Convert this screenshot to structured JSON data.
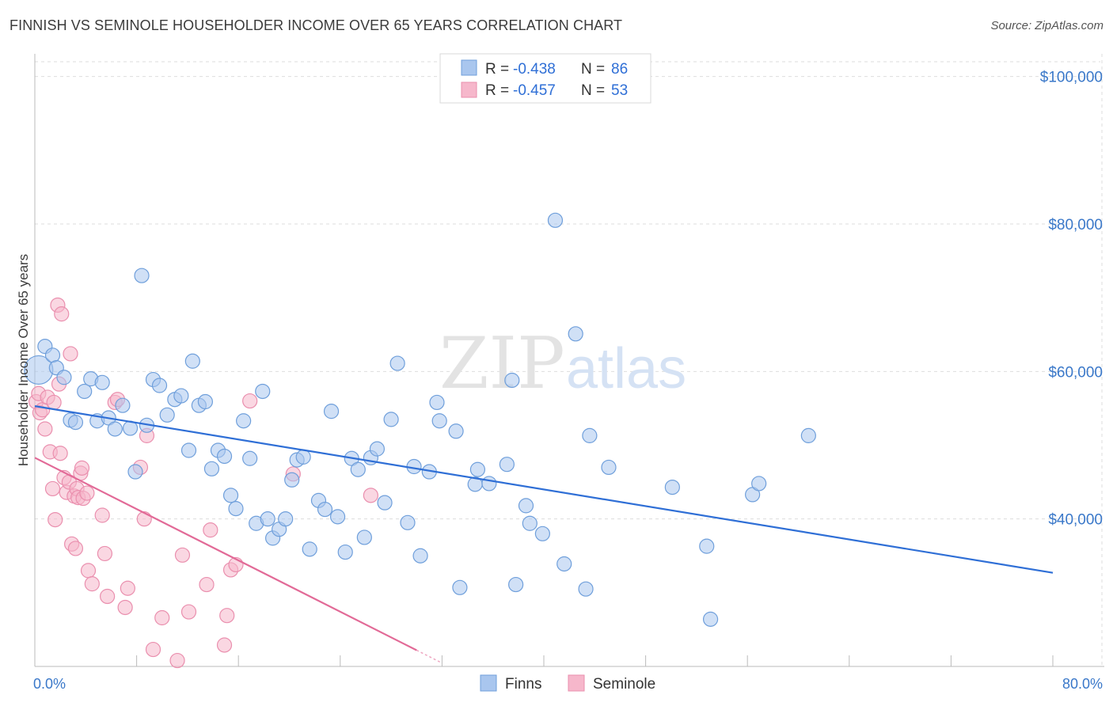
{
  "title": "FINNISH VS SEMINOLE HOUSEHOLDER INCOME OVER 65 YEARS CORRELATION CHART",
  "source": "Source: ZipAtlas.com",
  "watermark": {
    "part1": "ZIP",
    "part2": "atlas"
  },
  "legend": {
    "finns": {
      "r_label": "R =",
      "r_value": "-0.438",
      "n_label": "N =",
      "n_value": "86"
    },
    "seminole": {
      "r_label": "R =",
      "r_value": "-0.457",
      "n_label": "N =",
      "n_value": "53"
    }
  },
  "colors": {
    "finns_fill": "#a9c6ee",
    "finns_stroke": "#6f9fdb",
    "finns_line": "#2f6fd6",
    "seminole_fill": "#f6b7cb",
    "seminole_stroke": "#ea8fae",
    "seminole_line": "#e26a97",
    "grid": "#dddddd",
    "tick_text": "#3a78c9"
  },
  "chart_data": {
    "type": "scatter",
    "title": "FINNISH VS SEMINOLE HOUSEHOLDER INCOME OVER 65 YEARS CORRELATION CHART",
    "xlabel": "",
    "ylabel": "Householder Income Over 65 years",
    "xlim": [
      0,
      80
    ],
    "ylim": [
      20000,
      102000
    ],
    "x_tick_labels": [
      "0.0%",
      "80.0%"
    ],
    "y_ticks": [
      {
        "value": 100000,
        "label": "$100,000"
      },
      {
        "value": 80000,
        "label": "$80,000"
      },
      {
        "value": 60000,
        "label": "$60,000"
      },
      {
        "value": 40000,
        "label": "$40,000"
      }
    ],
    "grid": true,
    "legend_position": "top-center",
    "series": [
      {
        "name": "Finns",
        "points": [
          [
            0.3,
            60200
          ],
          [
            0.8,
            63400
          ],
          [
            1.4,
            62200
          ],
          [
            1.7,
            60500
          ],
          [
            2.3,
            59200
          ],
          [
            2.8,
            53400
          ],
          [
            3.2,
            53100
          ],
          [
            3.9,
            57300
          ],
          [
            4.4,
            59000
          ],
          [
            4.9,
            53300
          ],
          [
            5.3,
            58500
          ],
          [
            5.8,
            53700
          ],
          [
            6.3,
            52200
          ],
          [
            6.9,
            55400
          ],
          [
            7.5,
            52300
          ],
          [
            7.9,
            46400
          ],
          [
            8.4,
            73000
          ],
          [
            8.8,
            52700
          ],
          [
            9.3,
            58900
          ],
          [
            9.8,
            58100
          ],
          [
            10.4,
            54100
          ],
          [
            11.0,
            56200
          ],
          [
            11.5,
            56700
          ],
          [
            12.1,
            49300
          ],
          [
            12.4,
            61400
          ],
          [
            12.9,
            55400
          ],
          [
            13.4,
            55900
          ],
          [
            13.9,
            46800
          ],
          [
            14.4,
            49300
          ],
          [
            14.9,
            48500
          ],
          [
            15.4,
            43200
          ],
          [
            15.8,
            41400
          ],
          [
            16.4,
            53300
          ],
          [
            16.9,
            48200
          ],
          [
            17.4,
            39400
          ],
          [
            17.9,
            57300
          ],
          [
            18.3,
            40000
          ],
          [
            18.7,
            37400
          ],
          [
            19.2,
            38600
          ],
          [
            19.7,
            40000
          ],
          [
            20.2,
            45300
          ],
          [
            20.6,
            48000
          ],
          [
            21.1,
            48400
          ],
          [
            21.6,
            35900
          ],
          [
            22.3,
            42500
          ],
          [
            22.8,
            41300
          ],
          [
            23.3,
            54600
          ],
          [
            23.8,
            40300
          ],
          [
            24.4,
            35500
          ],
          [
            24.9,
            48200
          ],
          [
            25.4,
            46700
          ],
          [
            25.9,
            37500
          ],
          [
            26.4,
            48300
          ],
          [
            26.9,
            49500
          ],
          [
            27.5,
            42200
          ],
          [
            28.0,
            53500
          ],
          [
            28.5,
            61100
          ],
          [
            29.3,
            39500
          ],
          [
            29.8,
            47100
          ],
          [
            30.3,
            35000
          ],
          [
            31.0,
            46400
          ],
          [
            31.6,
            55800
          ],
          [
            31.8,
            53300
          ],
          [
            33.1,
            51900
          ],
          [
            33.4,
            30700
          ],
          [
            34.6,
            44700
          ],
          [
            34.8,
            46700
          ],
          [
            35.7,
            44800
          ],
          [
            37.1,
            47400
          ],
          [
            37.5,
            58800
          ],
          [
            37.8,
            31100
          ],
          [
            38.6,
            41800
          ],
          [
            38.9,
            39400
          ],
          [
            39.9,
            38000
          ],
          [
            40.9,
            80500
          ],
          [
            41.6,
            33900
          ],
          [
            42.5,
            65100
          ],
          [
            43.3,
            30500
          ],
          [
            43.6,
            51300
          ],
          [
            45.1,
            47000
          ],
          [
            50.1,
            44300
          ],
          [
            52.8,
            36300
          ],
          [
            53.1,
            26400
          ],
          [
            56.4,
            43300
          ],
          [
            56.9,
            44800
          ],
          [
            60.8,
            51300
          ]
        ]
      },
      {
        "name": "Seminole",
        "points": [
          [
            0.1,
            55900
          ],
          [
            0.3,
            57000
          ],
          [
            0.4,
            54400
          ],
          [
            0.6,
            54800
          ],
          [
            0.8,
            52200
          ],
          [
            1.0,
            56500
          ],
          [
            1.2,
            49100
          ],
          [
            1.4,
            44100
          ],
          [
            1.5,
            55800
          ],
          [
            1.6,
            39900
          ],
          [
            1.8,
            69000
          ],
          [
            1.9,
            58300
          ],
          [
            2.0,
            48900
          ],
          [
            2.1,
            67800
          ],
          [
            2.3,
            45600
          ],
          [
            2.5,
            43600
          ],
          [
            2.7,
            45000
          ],
          [
            2.8,
            62400
          ],
          [
            2.9,
            36600
          ],
          [
            3.1,
            43100
          ],
          [
            3.2,
            36000
          ],
          [
            3.3,
            44100
          ],
          [
            3.4,
            42900
          ],
          [
            3.6,
            46200
          ],
          [
            3.7,
            46900
          ],
          [
            3.8,
            42800
          ],
          [
            4.1,
            43500
          ],
          [
            4.2,
            33000
          ],
          [
            4.5,
            31200
          ],
          [
            5.3,
            40500
          ],
          [
            5.5,
            35300
          ],
          [
            5.7,
            29500
          ],
          [
            6.3,
            55800
          ],
          [
            6.5,
            56200
          ],
          [
            7.1,
            28000
          ],
          [
            7.3,
            30600
          ],
          [
            8.3,
            47000
          ],
          [
            8.6,
            40000
          ],
          [
            8.8,
            51300
          ],
          [
            9.3,
            22300
          ],
          [
            10.0,
            26600
          ],
          [
            11.2,
            20800
          ],
          [
            11.6,
            35100
          ],
          [
            12.1,
            27400
          ],
          [
            13.5,
            31100
          ],
          [
            13.8,
            38500
          ],
          [
            14.9,
            22900
          ],
          [
            15.1,
            26900
          ],
          [
            15.4,
            33100
          ],
          [
            15.8,
            33800
          ],
          [
            16.9,
            56000
          ],
          [
            20.3,
            46100
          ],
          [
            26.4,
            43200
          ]
        ]
      }
    ],
    "trendlines": [
      {
        "name": "Finns",
        "x": [
          0,
          80
        ],
        "y": [
          55300,
          32700
        ]
      },
      {
        "name": "Seminole",
        "x": [
          0,
          30
        ],
        "y": [
          48300,
          22200
        ]
      }
    ]
  },
  "bottom_legend": {
    "finns": "Finns",
    "seminole": "Seminole"
  }
}
